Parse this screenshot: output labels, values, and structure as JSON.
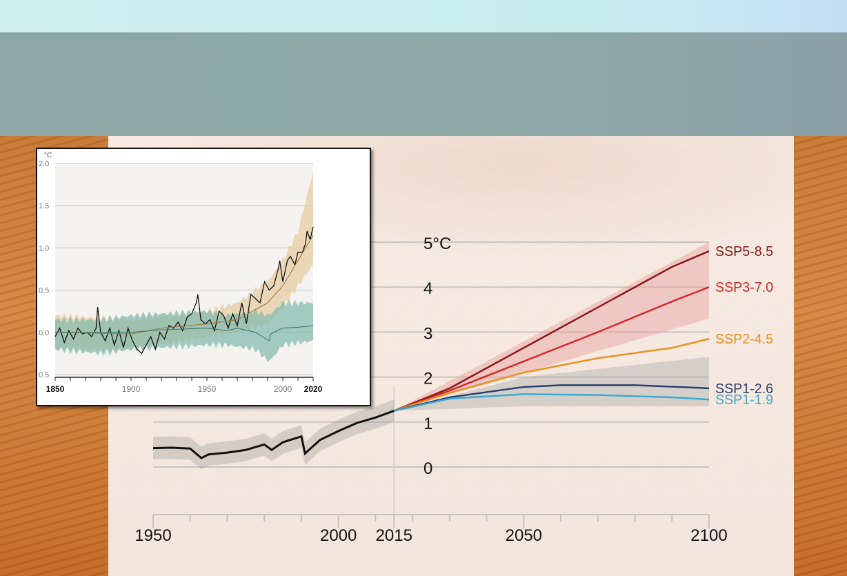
{
  "chart_data": [
    {
      "type": "line",
      "ylabel": "°C",
      "y_tick_labels": [
        "5°C",
        "4",
        "3",
        "2",
        "1",
        "0"
      ],
      "y_ticks": [
        5,
        4,
        3,
        2,
        1,
        0
      ],
      "x_tick_labels": [
        "1950",
        "2000",
        "2015",
        "2050",
        "2100"
      ],
      "x_ticks": [
        1950,
        2000,
        2015,
        2050,
        2100
      ],
      "xlim": [
        1950,
        2100
      ],
      "ylim": [
        0,
        5
      ],
      "grid": true,
      "historical": {
        "x": [
          1950,
          1955,
          1960,
          1963,
          1965,
          1970,
          1975,
          1980,
          1982,
          1985,
          1990,
          1991,
          1993,
          1995,
          2000,
          2005,
          2010,
          2015
        ],
        "y": [
          0.42,
          0.43,
          0.41,
          0.2,
          0.28,
          0.32,
          0.38,
          0.5,
          0.38,
          0.55,
          0.68,
          0.3,
          0.45,
          0.6,
          0.8,
          0.98,
          1.1,
          1.25
        ],
        "band_halfwidth": 0.25,
        "color": "#111111"
      },
      "series": [
        {
          "name": "SSP5-8.5",
          "color": "#8b1a1a",
          "x": [
            2015,
            2030,
            2050,
            2070,
            2090,
            2100
          ],
          "y": [
            1.25,
            1.75,
            2.65,
            3.55,
            4.45,
            4.8
          ]
        },
        {
          "name": "SSP3-7.0",
          "color": "#d42a2a",
          "x": [
            2015,
            2030,
            2050,
            2070,
            2090,
            2100
          ],
          "y": [
            1.25,
            1.7,
            2.35,
            3.0,
            3.68,
            4.0
          ]
        },
        {
          "name": "SSP2-4.5",
          "color": "#e89020",
          "x": [
            2015,
            2030,
            2050,
            2070,
            2090,
            2100
          ],
          "y": [
            1.25,
            1.65,
            2.1,
            2.42,
            2.65,
            2.85
          ]
        },
        {
          "name": "SSP1-2.6",
          "color": "#2b3f6b",
          "x": [
            2015,
            2030,
            2050,
            2060,
            2080,
            2100
          ],
          "y": [
            1.25,
            1.55,
            1.78,
            1.82,
            1.82,
            1.75
          ]
        },
        {
          "name": "SSP1-1.9",
          "color": "#3aa8d4",
          "x": [
            2015,
            2030,
            2050,
            2070,
            2090,
            2100
          ],
          "y": [
            1.25,
            1.52,
            1.62,
            1.6,
            1.55,
            1.5
          ]
        }
      ],
      "bands": [
        {
          "color": "#e8a0a0",
          "x": [
            2015,
            2100
          ],
          "lower": [
            1.25,
            3.3
          ],
          "upper": [
            1.25,
            5.0
          ]
        },
        {
          "color": "#b0b0b0",
          "x": [
            2015,
            2050,
            2100
          ],
          "lower": [
            1.25,
            1.35,
            1.35
          ],
          "upper": [
            1.25,
            2.0,
            2.45
          ]
        }
      ]
    },
    {
      "type": "line",
      "ylabel": "°C",
      "y_tick_labels": [
        "2.0",
        "1.5",
        "1.0",
        "0.5",
        "0.0",
        "0.5"
      ],
      "y_ticks": [
        2.0,
        1.5,
        1.0,
        0.5,
        0.0,
        -0.5
      ],
      "x_tick_labels": [
        "1850",
        "1900",
        "1950",
        "2000",
        "2020"
      ],
      "x_ticks": [
        1850,
        1900,
        1950,
        2000,
        2020
      ],
      "xlim": [
        1850,
        2020
      ],
      "ylim": [
        -0.5,
        2.0
      ],
      "grid": true,
      "series": [
        {
          "color": "#111111",
          "x": [
            1850,
            1853,
            1856,
            1859,
            1862,
            1865,
            1868,
            1871,
            1874,
            1877,
            1878,
            1880,
            1883,
            1886,
            1889,
            1892,
            1895,
            1898,
            1901,
            1904,
            1907,
            1910,
            1913,
            1916,
            1919,
            1922,
            1925,
            1928,
            1931,
            1934,
            1937,
            1940,
            1943,
            1944,
            1946,
            1949,
            1952,
            1955,
            1958,
            1961,
            1964,
            1967,
            1970,
            1973,
            1976,
            1979,
            1982,
            1985,
            1988,
            1991,
            1994,
            1997,
            1998,
            2000,
            2003,
            2005,
            2008,
            2010,
            2013,
            2015,
            2016,
            2018,
            2020
          ],
          "y": [
            -0.05,
            0.05,
            -0.12,
            0.02,
            -0.08,
            0.05,
            -0.02,
            0.0,
            -0.05,
            0.05,
            0.3,
            0.0,
            -0.1,
            0.05,
            -0.15,
            0.02,
            -0.18,
            0.05,
            -0.1,
            -0.2,
            -0.25,
            -0.15,
            -0.05,
            -0.2,
            0.0,
            -0.08,
            0.08,
            0.05,
            0.12,
            0.02,
            0.18,
            0.22,
            0.35,
            0.45,
            0.15,
            0.1,
            0.15,
            0.02,
            0.25,
            0.2,
            0.05,
            0.22,
            0.08,
            0.35,
            0.1,
            0.45,
            0.4,
            0.35,
            0.6,
            0.5,
            0.55,
            0.75,
            0.85,
            0.6,
            0.85,
            0.9,
            0.8,
            0.95,
            0.95,
            1.05,
            1.2,
            1.1,
            1.25
          ]
        },
        {
          "color": "#9c7a3c",
          "x": [
            1850,
            1900,
            1920,
            1950,
            1970,
            1990,
            2000,
            2010,
            2020
          ],
          "y": [
            0.0,
            -0.02,
            0.05,
            0.1,
            0.15,
            0.35,
            0.55,
            0.85,
            1.15
          ]
        },
        {
          "color": "#3d7a6e",
          "x": [
            1850,
            1880,
            1900,
            1920,
            1950,
            1963,
            1970,
            1982,
            1991,
            1992,
            2000,
            2010,
            2020
          ],
          "y": [
            0.0,
            0.0,
            0.0,
            0.03,
            0.05,
            0.02,
            0.05,
            0.0,
            -0.1,
            -0.02,
            0.05,
            0.06,
            0.08
          ]
        }
      ],
      "bands": [
        {
          "color": "#e8c9a0",
          "x": [
            1850,
            1900,
            1950,
            1970,
            1990,
            2000,
            2010,
            2020
          ],
          "lower": [
            -0.2,
            -0.2,
            -0.05,
            0.0,
            0.1,
            0.3,
            0.55,
            0.8
          ],
          "upper": [
            0.2,
            0.15,
            0.25,
            0.35,
            0.6,
            0.85,
            1.2,
            1.9
          ]
        },
        {
          "color": "#7fb8ad",
          "x": [
            1850,
            1880,
            1900,
            1950,
            1963,
            1982,
            1991,
            2000,
            2020
          ],
          "lower": [
            -0.2,
            -0.25,
            -0.2,
            -0.15,
            -0.15,
            -0.2,
            -0.35,
            -0.15,
            -0.1
          ],
          "upper": [
            0.15,
            0.15,
            0.2,
            0.25,
            0.2,
            0.25,
            0.2,
            0.35,
            0.35
          ]
        }
      ]
    }
  ]
}
